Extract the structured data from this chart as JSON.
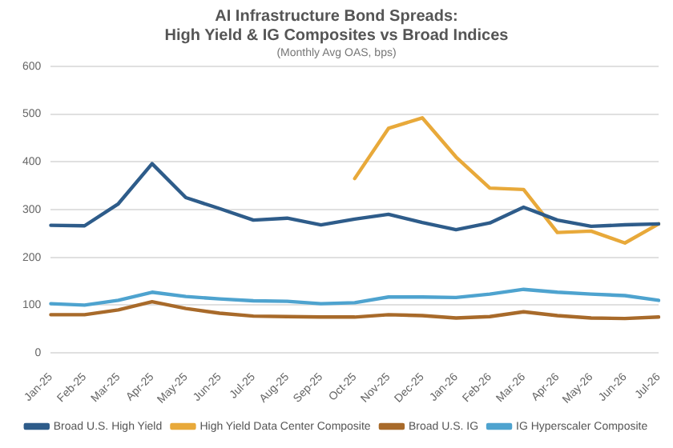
{
  "chart_data": {
    "type": "line",
    "title": [
      "AI Infrastructure Bond Spreads:",
      "High Yield & IG Composites vs Broad Indices"
    ],
    "subtitle": "(Monthly Avg OAS, bps)",
    "categories": [
      "Jan-25",
      "Feb-25",
      "Mar-25",
      "Apr-25",
      "May-25",
      "Jun-25",
      "Jul-25",
      "Aug-25",
      "Sep-25",
      "Oct-25",
      "Nov-25",
      "Dec-25",
      "Jan-26",
      "Feb-26",
      "Mar-26",
      "Apr-26",
      "May-26",
      "Jun-26",
      "Jul-26"
    ],
    "series": [
      {
        "name": "Broad U.S. High Yield",
        "color": "#2e5c8a",
        "values": [
          267,
          266,
          312,
          396,
          325,
          302,
          278,
          282,
          268,
          280,
          290,
          273,
          258,
          272,
          305,
          278,
          265,
          268,
          270
        ]
      },
      {
        "name": "High Yield Data Center Composite",
        "color": "#e8a93a",
        "values": [
          null,
          null,
          null,
          null,
          null,
          null,
          null,
          null,
          null,
          365,
          470,
          492,
          410,
          345,
          342,
          252,
          255,
          230,
          270
        ]
      },
      {
        "name": "Broad U.S. IG",
        "color": "#a86a2a",
        "values": [
          80,
          80,
          90,
          107,
          93,
          83,
          77,
          76,
          75,
          75,
          80,
          78,
          73,
          76,
          86,
          78,
          73,
          72,
          75
        ]
      },
      {
        "name": "IG Hyperscaler Composite",
        "color": "#4ea3cf",
        "values": [
          103,
          100,
          110,
          127,
          118,
          113,
          109,
          108,
          103,
          105,
          117,
          117,
          116,
          123,
          133,
          127,
          123,
          120,
          110
        ]
      }
    ],
    "ylim": [
      0,
      600
    ],
    "yticks": [
      0,
      100,
      200,
      300,
      400,
      500,
      600
    ],
    "grid": "y",
    "legend": "bottom",
    "marker": "none",
    "line_style": "solid"
  }
}
